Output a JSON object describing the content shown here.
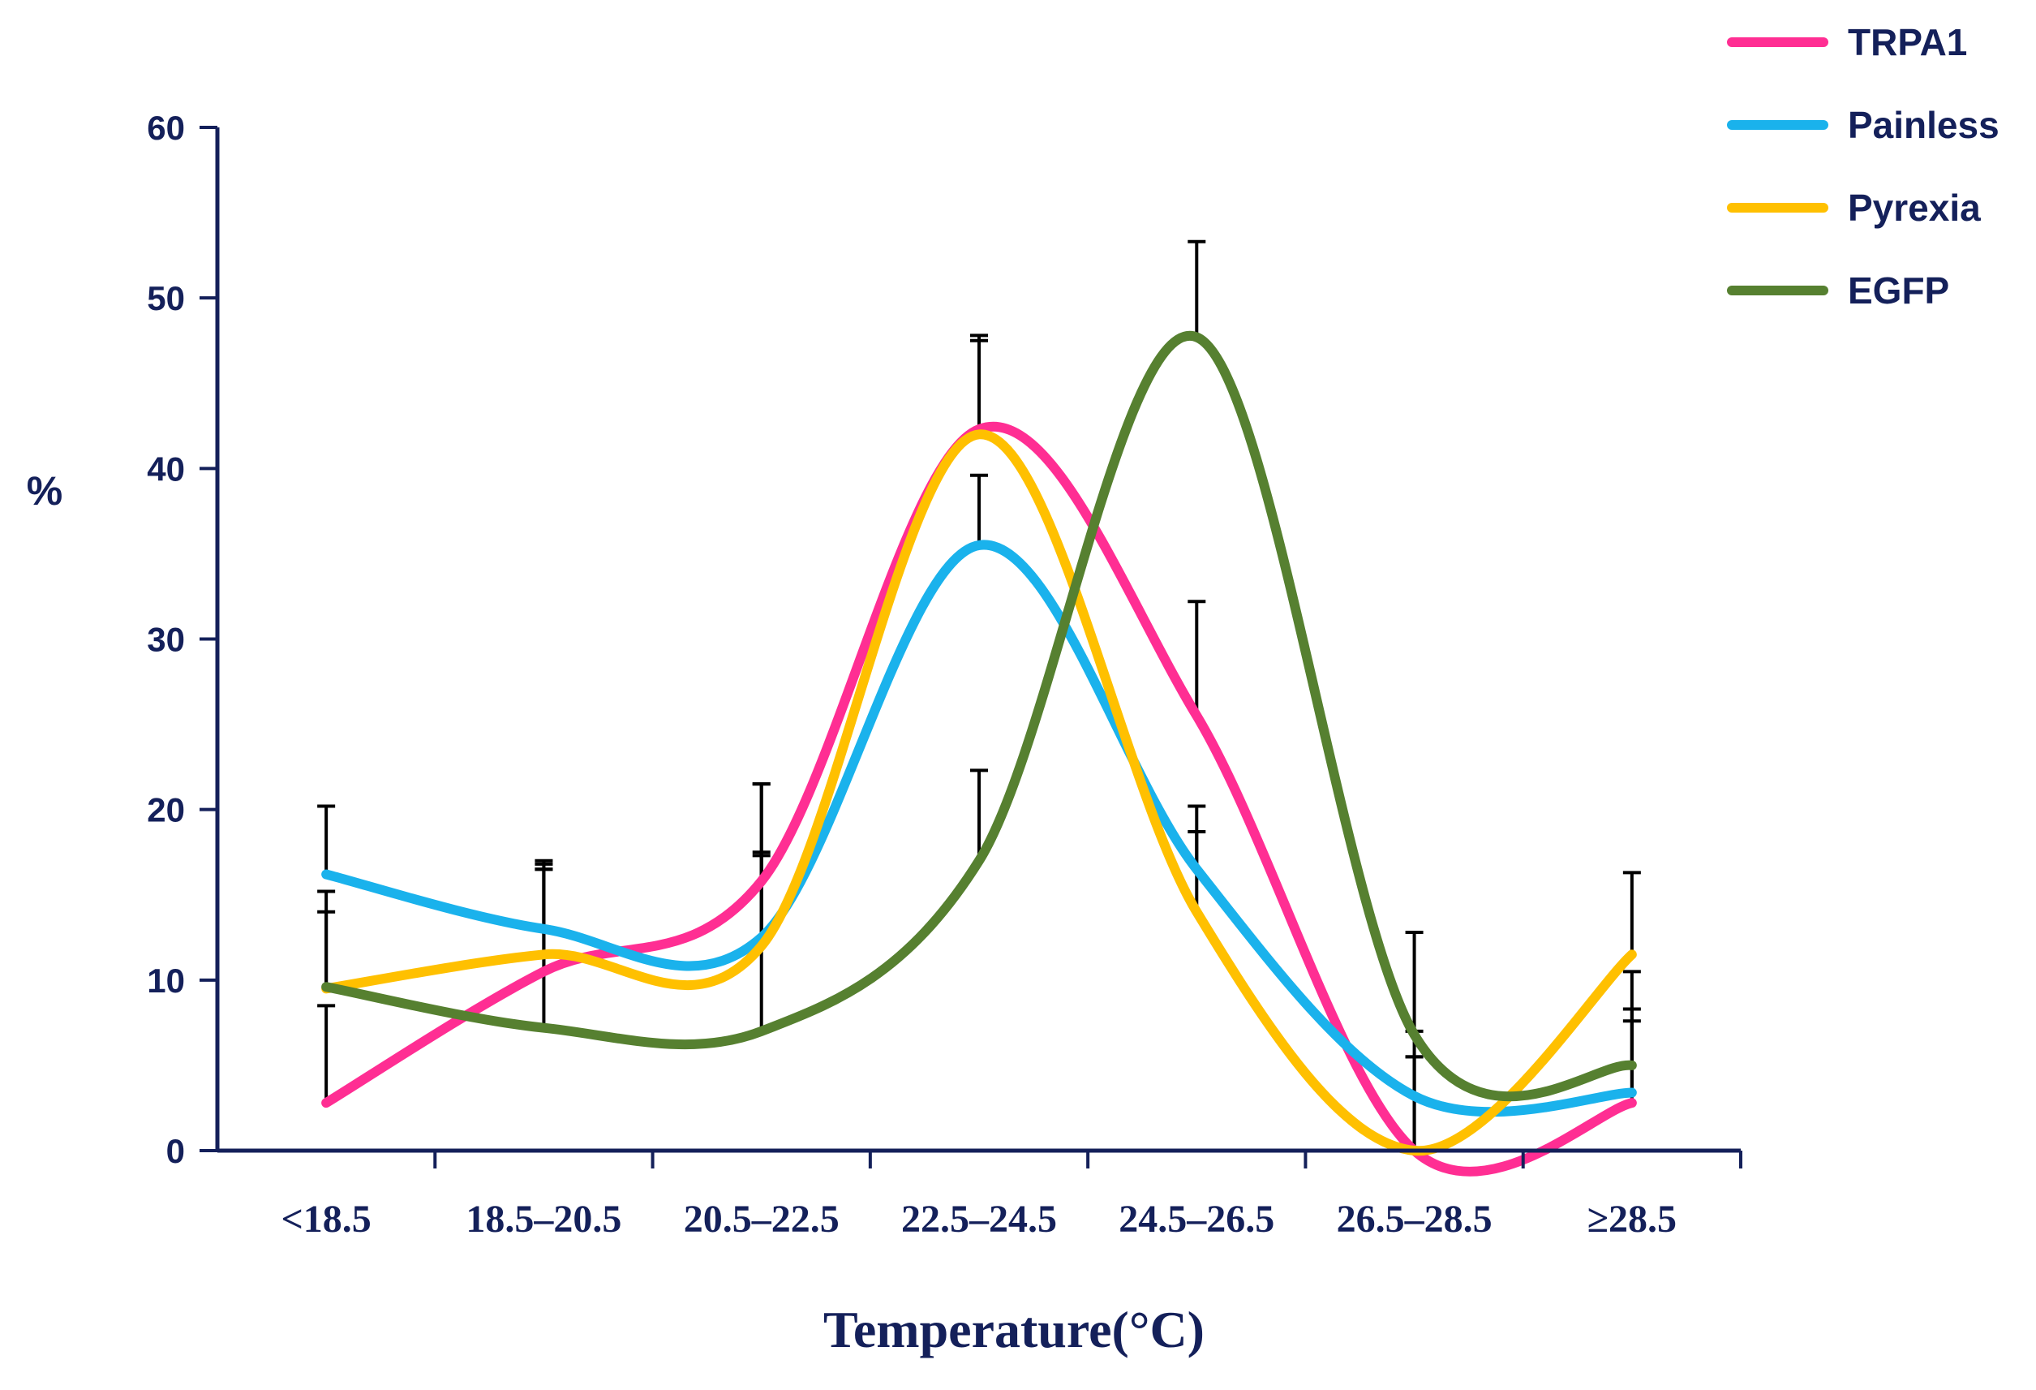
{
  "chart_data": {
    "type": "line",
    "title": "",
    "xlabel": "Temperature(°C)",
    "ylabel": "%",
    "ylim": [
      0,
      60
    ],
    "yticks": [
      0,
      10,
      20,
      30,
      40,
      50,
      60
    ],
    "categories": [
      "<18.5",
      "18.5–20.5",
      "20.5–22.5",
      "22.5–24.5",
      "24.5–26.5",
      "26.5–28.5",
      "≥28.5"
    ],
    "legend_position": "top-right",
    "series": [
      {
        "name": "TRPA1",
        "color": "#ff2e93",
        "values": [
          2.8,
          10.5,
          15.8,
          42.3,
          25.5,
          0.0,
          2.8
        ],
        "error_upper": [
          8.5,
          16.8,
          21.5,
          47.5,
          32.2,
          5.5,
          8.3
        ]
      },
      {
        "name": "Painless",
        "color": "#1ab2ec",
        "values": [
          16.2,
          13.0,
          12.5,
          35.5,
          16.5,
          3.2,
          3.4
        ],
        "error_upper": [
          20.2,
          16.5,
          17.3,
          39.6,
          18.7,
          7.0,
          7.6
        ]
      },
      {
        "name": "Pyrexia",
        "color": "#ffc000",
        "values": [
          9.5,
          11.5,
          12.0,
          42.0,
          14.0,
          0.0,
          11.5
        ],
        "error_upper": [
          14.0,
          16.5,
          17.5,
          47.8,
          20.2,
          5.5,
          16.3
        ]
      },
      {
        "name": "EGFP",
        "color": "#568030",
        "values": [
          9.6,
          7.2,
          7.0,
          17.0,
          47.7,
          6.8,
          5.0
        ],
        "error_upper": [
          15.2,
          17.0,
          21.5,
          22.3,
          53.3,
          12.8,
          10.5
        ]
      }
    ]
  }
}
